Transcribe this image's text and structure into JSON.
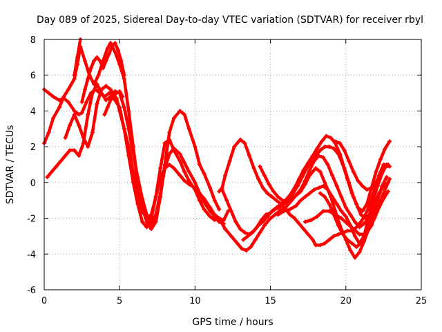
{
  "chart_data": {
    "type": "scatter",
    "title": "Day 089 of 2025, Sidereal Day-to-day VTEC variation (SDTVAR) for receiver rbyl",
    "xlabel": "GPS time / hours",
    "ylabel": "SDTVAR / TECUs",
    "xlim": [
      0,
      25
    ],
    "ylim": [
      -6,
      8
    ],
    "xticks": [
      0,
      5,
      10,
      15,
      20,
      25
    ],
    "yticks": [
      -6,
      -4,
      -2,
      0,
      2,
      4,
      6,
      8
    ],
    "grid": true,
    "marker": "plus",
    "color": "#ff0000",
    "series": [
      {
        "x": [
          0.0,
          0.3,
          0.6,
          1.0,
          1.3,
          1.6,
          2.0,
          2.3,
          2.5,
          2.8,
          3.1,
          3.4,
          3.7,
          4.0,
          4.3,
          4.5,
          4.8,
          5.0,
          5.3,
          5.6,
          5.9,
          6.2,
          6.5,
          6.8,
          7.1,
          7.4,
          7.7,
          8.0,
          8.3,
          8.6,
          9.0,
          9.3,
          9.6,
          10.0,
          10.3,
          10.6,
          11.0,
          11.3,
          11.6
        ],
        "y": [
          5.2,
          5.0,
          4.8,
          4.6,
          4.7,
          4.5,
          4.0,
          3.8,
          3.9,
          4.5,
          5.0,
          5.2,
          5.0,
          4.8,
          5.0,
          5.0,
          4.7,
          4.0,
          3.0,
          1.5,
          0.0,
          -1.2,
          -2.2,
          -2.5,
          -2.0,
          -0.8,
          0.8,
          2.2,
          2.4,
          1.8,
          1.2,
          0.6,
          0.1,
          -0.4,
          -1.0,
          -1.5,
          -1.9,
          -2.1,
          -2.0
        ]
      },
      {
        "x": [
          0.0,
          0.3,
          0.6,
          1.0,
          1.3,
          1.6,
          2.0,
          2.2,
          2.4,
          2.7,
          3.0,
          3.3,
          3.6,
          3.9,
          4.2,
          4.4,
          4.7,
          5.0,
          5.3,
          5.6,
          5.9,
          6.2,
          6.5,
          6.8,
          7.1,
          7.4,
          7.7,
          8.0,
          8.3,
          8.6,
          9.0,
          9.3,
          9.6,
          10.0,
          10.3,
          10.6,
          11.0,
          11.3,
          11.6
        ],
        "y": [
          2.2,
          2.8,
          3.6,
          4.2,
          4.8,
          5.2,
          5.8,
          6.6,
          7.6,
          6.8,
          6.0,
          5.5,
          6.0,
          6.8,
          7.5,
          7.8,
          7.3,
          6.6,
          5.8,
          4.0,
          2.0,
          0.0,
          -1.4,
          -2.2,
          -2.6,
          -2.2,
          -0.8,
          1.0,
          2.8,
          3.6,
          4.0,
          3.8,
          3.0,
          2.0,
          1.0,
          0.5,
          -0.3,
          -1.0,
          -1.5
        ]
      },
      {
        "x": [
          0.2,
          0.5,
          0.8,
          1.1,
          1.4,
          1.7,
          2.0,
          2.3,
          2.6,
          2.9,
          3.2,
          3.5,
          3.8,
          4.1,
          4.4,
          4.7,
          5.0,
          5.3,
          5.6,
          5.9,
          6.2,
          6.5,
          6.8,
          7.1,
          7.4,
          7.7,
          8.0,
          8.3,
          8.6,
          9.0,
          9.3,
          9.6,
          10.0,
          10.3,
          10.6,
          11.0,
          11.3,
          11.6,
          11.9
        ],
        "y": [
          0.3,
          0.6,
          0.9,
          1.2,
          1.5,
          1.8,
          1.8,
          1.5,
          2.2,
          3.8,
          5.0,
          5.5,
          5.0,
          4.6,
          4.8,
          5.1,
          5.0,
          4.2,
          3.0,
          1.6,
          0.3,
          -0.9,
          -1.8,
          -2.3,
          -1.8,
          -0.6,
          0.8,
          1.6,
          1.9,
          1.6,
          1.1,
          0.6,
          0.0,
          -0.6,
          -1.1,
          -1.6,
          -1.9,
          -2.2,
          -2.3
        ]
      },
      {
        "x": [
          1.4,
          1.7,
          2.0,
          2.3,
          2.6,
          2.9,
          3.2,
          3.5,
          3.8,
          4.1,
          4.4,
          4.7,
          5.0,
          5.3,
          5.6,
          5.9,
          6.2,
          6.5,
          6.8,
          7.1,
          7.4,
          7.7,
          8.0,
          8.3,
          8.6,
          9.0,
          9.3,
          9.6,
          10.0,
          10.3,
          10.6,
          11.0,
          11.3,
          11.6,
          11.9,
          12.2
        ],
        "y": [
          2.5,
          3.2,
          3.8,
          3.2,
          2.5,
          2.0,
          2.8,
          4.4,
          5.2,
          5.4,
          5.2,
          4.6,
          4.2,
          3.0,
          2.0,
          0.6,
          -0.8,
          -1.6,
          -2.0,
          -1.8,
          -0.8,
          0.2,
          0.8,
          1.0,
          0.8,
          0.4,
          0.1,
          -0.1,
          -0.3,
          -0.6,
          -0.9,
          -1.4,
          -1.8,
          -2.0,
          -2.1,
          -1.6
        ]
      },
      {
        "x": [
          11.6,
          11.8,
          12.0,
          12.3,
          12.6,
          13.0,
          13.3,
          13.6,
          13.9,
          14.2,
          14.5,
          14.8,
          15.1,
          15.4,
          15.7,
          16.0,
          16.3,
          16.6,
          16.9,
          17.2,
          17.5,
          17.8,
          18.0,
          18.3,
          18.6,
          18.9,
          19.2,
          19.5,
          19.8,
          20.1,
          20.4,
          20.7,
          21.0,
          21.3,
          21.6,
          21.9,
          22.2,
          22.5,
          22.8
        ],
        "y": [
          -0.5,
          -0.3,
          0.4,
          1.2,
          2.0,
          2.4,
          2.2,
          1.5,
          0.8,
          0.2,
          -0.3,
          -0.6,
          -0.8,
          -1.0,
          -1.2,
          -1.5,
          -1.8,
          -2.0,
          -2.3,
          -2.6,
          -2.9,
          -3.2,
          -3.5,
          -3.5,
          -3.4,
          -3.2,
          -3.0,
          -2.9,
          -2.8,
          -2.7,
          -2.7,
          -2.5,
          -2.2,
          -1.8,
          -1.2,
          -0.4,
          0.4,
          1.0,
          1.0
        ]
      },
      {
        "x": [
          11.6,
          12.0,
          12.4,
          12.8,
          13.1,
          13.4,
          13.7,
          14.0,
          14.3,
          14.6,
          15.0,
          15.3,
          15.6,
          16.0,
          16.3,
          16.6,
          17.0,
          17.3,
          17.6,
          18.0,
          18.3,
          18.6,
          19.0,
          19.3,
          19.6,
          20.0,
          20.3,
          20.6,
          20.9,
          21.2,
          21.5,
          21.8,
          22.1,
          22.4,
          22.7
        ],
        "y": [
          -2.0,
          -2.6,
          -3.0,
          -3.4,
          -3.7,
          -3.8,
          -3.6,
          -3.2,
          -2.8,
          -2.4,
          -2.0,
          -1.8,
          -1.6,
          -1.4,
          -1.1,
          -0.8,
          -0.5,
          -0.1,
          0.4,
          0.8,
          0.6,
          0.0,
          -0.8,
          -1.6,
          -2.4,
          -3.2,
          -3.8,
          -4.2,
          -3.9,
          -3.3,
          -2.6,
          -1.8,
          -1.0,
          -0.2,
          0.3
        ]
      },
      {
        "x": [
          11.8,
          12.1,
          12.4,
          12.7,
          13.0,
          13.3,
          13.6,
          13.9,
          14.2,
          14.5,
          14.8,
          15.1,
          15.4,
          15.7,
          16.0,
          16.3,
          16.6,
          16.9,
          17.2,
          17.5,
          17.8,
          18.1,
          18.4,
          18.7,
          19.0,
          19.3,
          19.6,
          19.9,
          20.2,
          20.5,
          20.8,
          21.1,
          21.4,
          21.7,
          22.0,
          22.3,
          22.6,
          22.9
        ],
        "y": [
          -0.4,
          -1.0,
          -1.6,
          -2.2,
          -2.6,
          -2.8,
          -2.9,
          -2.7,
          -2.4,
          -2.2,
          -1.9,
          -1.6,
          -1.4,
          -1.2,
          -1.0,
          -0.7,
          -0.3,
          0.2,
          0.7,
          1.1,
          1.5,
          1.9,
          2.3,
          2.6,
          2.5,
          2.2,
          1.6,
          0.8,
          0.0,
          -0.8,
          -1.4,
          -1.6,
          -1.2,
          -0.3,
          0.6,
          1.3,
          1.9,
          2.3
        ]
      },
      {
        "x": [
          13.2,
          13.5,
          13.8,
          14.1,
          14.4,
          14.7,
          15.0,
          15.3,
          15.6,
          15.9,
          16.2,
          16.5,
          16.8,
          17.1,
          17.4,
          17.7,
          18.0,
          18.3,
          18.6,
          18.9,
          19.2,
          19.5,
          19.8,
          20.1,
          20.4,
          20.7,
          21.0,
          21.3,
          21.6,
          21.9,
          22.2,
          22.5,
          22.8
        ],
        "y": [
          -3.2,
          -3.0,
          -2.8,
          -2.5,
          -2.1,
          -1.8,
          -1.7,
          -1.5,
          -1.4,
          -1.2,
          -1.0,
          -0.6,
          -0.2,
          0.3,
          0.8,
          1.2,
          1.5,
          1.8,
          2.0,
          2.0,
          1.9,
          1.6,
          1.0,
          0.2,
          -0.6,
          -1.2,
          -1.8,
          -2.0,
          -1.8,
          -1.2,
          -0.6,
          -0.2,
          0.0
        ]
      },
      {
        "x": [
          15.5,
          15.9,
          16.3,
          16.7,
          17.0,
          17.3,
          17.6,
          17.9,
          18.2,
          18.5,
          18.8,
          19.1,
          19.4,
          19.7,
          20.0,
          20.3,
          20.6,
          20.9,
          21.2,
          21.5,
          21.8,
          22.1,
          22.4,
          22.7
        ],
        "y": [
          -1.8,
          -1.6,
          -1.5,
          -1.3,
          -1.0,
          -0.8,
          -0.6,
          -0.4,
          -0.3,
          -0.2,
          -0.4,
          -0.8,
          -1.2,
          -1.6,
          -1.9,
          -2.4,
          -3.0,
          -3.4,
          -3.0,
          -2.0,
          -1.0,
          -0.2,
          0.5,
          1.0
        ]
      },
      {
        "x": [
          17.3,
          17.7,
          18.1,
          18.5,
          18.9,
          19.3,
          19.7,
          20.1,
          20.5,
          20.9,
          21.3,
          21.7,
          22.1,
          22.5,
          22.9
        ],
        "y": [
          -2.2,
          -2.1,
          -1.9,
          -1.6,
          -1.6,
          -1.8,
          -2.0,
          -2.3,
          -2.6,
          -2.9,
          -2.9,
          -2.4,
          -1.5,
          -0.6,
          0.2
        ]
      },
      {
        "x": [
          18.3,
          18.6,
          18.9,
          19.2,
          19.5,
          19.8,
          20.1,
          20.4,
          20.7,
          21.0,
          21.3,
          21.6,
          21.9,
          22.2,
          22.5,
          22.8
        ],
        "y": [
          -0.6,
          -0.8,
          -1.2,
          -1.8,
          -2.4,
          -2.9,
          -3.2,
          -3.4,
          -3.6,
          -3.4,
          -3.0,
          -2.5,
          -2.0,
          -1.4,
          -0.9,
          -0.5
        ]
      },
      {
        "x": [
          19.3,
          19.6,
          19.9,
          20.2,
          20.5,
          20.8,
          21.1,
          21.4,
          21.7,
          22.0,
          22.3,
          22.6,
          22.9
        ],
        "y": [
          2.3,
          2.2,
          1.8,
          1.2,
          0.6,
          0.1,
          -0.2,
          -0.4,
          -0.3,
          0.0,
          0.5,
          0.9,
          0.9
        ]
      },
      {
        "x": [
          14.3,
          14.6,
          14.9,
          15.2,
          15.5,
          15.8,
          16.1,
          16.4,
          16.7,
          17.0,
          17.3,
          17.6,
          17.9,
          18.2,
          18.5,
          18.8,
          19.1,
          19.4,
          19.7,
          20.0,
          20.3,
          20.6,
          20.9,
          21.2,
          21.5,
          21.8
        ],
        "y": [
          0.9,
          0.4,
          -0.1,
          -0.5,
          -0.8,
          -1.0,
          -1.1,
          -1.0,
          -0.7,
          -0.4,
          0.1,
          0.7,
          1.2,
          1.5,
          1.4,
          1.0,
          0.4,
          -0.2,
          -0.8,
          -1.4,
          -1.8,
          -2.2,
          -2.5,
          -2.3,
          -2.0,
          -1.7
        ]
      },
      {
        "x": [
          2.5,
          2.7,
          2.9,
          3.1,
          3.3,
          3.5,
          3.7,
          3.9,
          4.1,
          4.3,
          4.5,
          4.7,
          4.9,
          5.1,
          5.3
        ],
        "y": [
          4.5,
          5.2,
          5.8,
          6.4,
          6.8,
          7.0,
          6.8,
          6.4,
          6.8,
          7.2,
          7.6,
          7.8,
          7.4,
          6.8,
          6.0
        ]
      },
      {
        "x": [
          4.0,
          4.2,
          4.4,
          4.6,
          4.8,
          5.0,
          5.2
        ],
        "y": [
          3.8,
          4.2,
          4.6,
          4.9,
          5.0,
          5.1,
          4.8
        ]
      },
      {
        "x": [
          2.0,
          2.2,
          2.4
        ],
        "y": [
          6.0,
          7.0,
          8.0
        ]
      }
    ]
  }
}
